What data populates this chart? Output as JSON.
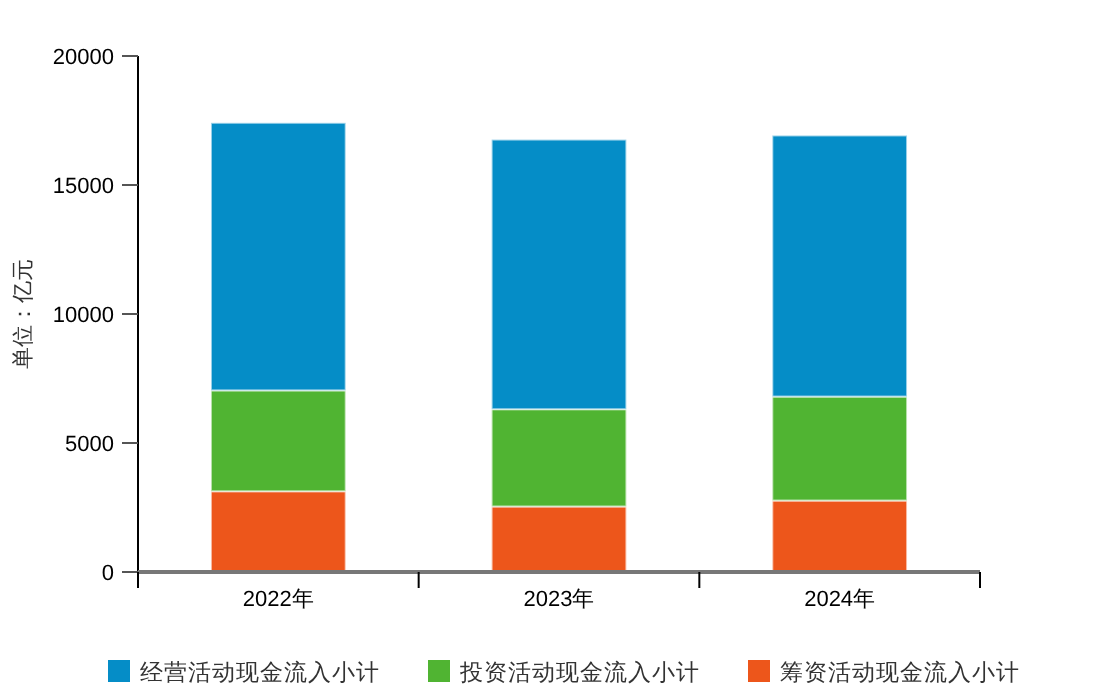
{
  "chart_data": {
    "type": "bar",
    "stacked": true,
    "ylabel": "单位：亿元",
    "categories": [
      "2022年",
      "2023年",
      "2024年"
    ],
    "series": [
      {
        "name": "筹资活动现金流入小计",
        "color": "#ed561b",
        "values": [
          3130,
          2540,
          2770
        ]
      },
      {
        "name": "投资活动现金流入小计",
        "color": "#50b432",
        "values": [
          3910,
          3770,
          4030
        ]
      },
      {
        "name": "经营活动现金流入小计",
        "color": "#058dc7",
        "values": [
          10370,
          10450,
          10120
        ]
      }
    ],
    "ylim": [
      0,
      20000
    ],
    "yticks": [
      0,
      5000,
      10000,
      15000,
      20000
    ],
    "grid": false,
    "legend": "bottom"
  }
}
